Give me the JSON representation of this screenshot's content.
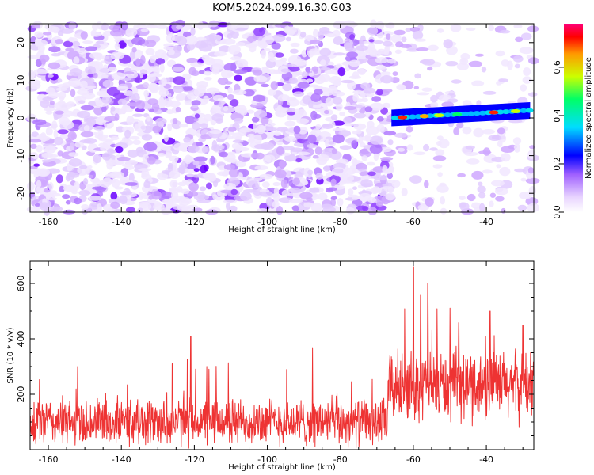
{
  "title": "KOM5.2024.099.16.30.G03",
  "colors": {
    "snr_line": "#ee3333",
    "axis": "#000000"
  },
  "chart_data": [
    {
      "type": "heatmap",
      "xlabel": "Height of straight line (km)",
      "ylabel": "Frequency (Hz)",
      "xlim": [
        -165,
        -27
      ],
      "ylim": [
        -25,
        25
      ],
      "xticks": [
        -160,
        -140,
        -120,
        -100,
        -80,
        -60,
        -40
      ],
      "yticks": [
        -20,
        -10,
        0,
        10,
        20
      ],
      "colorbar": {
        "label": "Normalized spectral amplitude",
        "range": [
          0,
          0.78
        ],
        "ticks": [
          0.0,
          0.2,
          0.4,
          0.6
        ],
        "colors": [
          "#ffffff",
          "#e8d4ff",
          "#a060ff",
          "#0000ff",
          "#00ddff",
          "#00ff66",
          "#ccff00",
          "#ff9900",
          "#ff0000",
          "#ff0077"
        ]
      },
      "signal_band": {
        "x_start": -66,
        "x_end": -28,
        "freq_at_start": 0,
        "freq_at_end": 2,
        "peak_amplitudes": [
          {
            "x": -63,
            "value": 0.72
          },
          {
            "x": -57,
            "value": 0.6
          },
          {
            "x": -53,
            "value": 0.45
          },
          {
            "x": -48,
            "value": 0.4
          },
          {
            "x": -38,
            "value": 0.7
          },
          {
            "x": -32,
            "value": 0.5
          }
        ]
      },
      "background_noise_amplitude": [
        0.0,
        0.15
      ]
    },
    {
      "type": "line",
      "xlabel": "Height of straight line (km)",
      "ylabel": "SNR (10 * v/v)",
      "xlim": [
        -165,
        -27
      ],
      "ylim": [
        0,
        680
      ],
      "xticks": [
        -160,
        -140,
        -120,
        -100,
        -80,
        -60,
        -40
      ],
      "yticks": [
        200,
        400,
        600
      ],
      "segments": [
        {
          "x_range": [
            -165,
            -67
          ],
          "baseline": 100,
          "spread": 100,
          "spikes": [
            {
              "x": -121,
              "value": 410
            },
            {
              "x": -126,
              "value": 310
            },
            {
              "x": -152,
              "value": 300
            }
          ]
        },
        {
          "x_range": [
            -67,
            -27
          ],
          "baseline": 230,
          "spread": 150,
          "spikes": [
            {
              "x": -60,
              "value": 660
            },
            {
              "x": -58,
              "value": 560
            },
            {
              "x": -56,
              "value": 600
            },
            {
              "x": -39,
              "value": 500
            },
            {
              "x": -30,
              "value": 450
            }
          ]
        }
      ]
    }
  ]
}
